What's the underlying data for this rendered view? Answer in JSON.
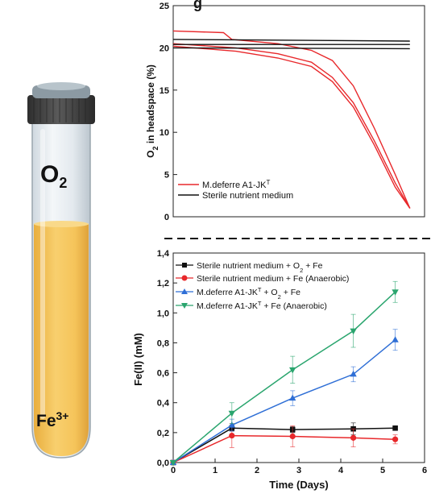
{
  "illustration": {
    "headspace_label": "O",
    "headspace_sub": "2",
    "liquid_label": "Fe",
    "liquid_sup": "3+",
    "colors": {
      "liquid": "#f5c45a",
      "cap": "#4a4a4a",
      "glass": "#e8eef3"
    }
  },
  "panel_label": "g",
  "chart_data": [
    {
      "type": "line",
      "ylabel_main": "O",
      "ylabel_sub": "2",
      "ylabel_rest": " in headspace (%)",
      "ylim": [
        0,
        25
      ],
      "yticks": [
        0,
        5,
        10,
        15,
        20,
        25
      ],
      "xlim": [
        0,
        6
      ],
      "legend_position": "bottom-left",
      "series": [
        {
          "name": "M.deferre A1-JK",
          "name_sup": "T",
          "color": "#e8282b",
          "values": [
            [
              0,
              22.0
            ],
            [
              1.2,
              21.8
            ],
            [
              1.4,
              21.0
            ],
            [
              2.5,
              20.5
            ],
            [
              3.3,
              19.7
            ],
            [
              3.8,
              18.5
            ],
            [
              4.3,
              15.5
            ],
            [
              4.8,
              10.5
            ],
            [
              5.3,
              5.0
            ],
            [
              5.65,
              1.0
            ]
          ]
        },
        {
          "name": "",
          "color": "#e8282b",
          "values": [
            [
              0,
              20.5
            ],
            [
              1.5,
              20.0
            ],
            [
              2.5,
              19.3
            ],
            [
              3.3,
              18.3
            ],
            [
              3.8,
              16.5
            ],
            [
              4.3,
              13.5
            ],
            [
              4.8,
              9.0
            ],
            [
              5.3,
              4.0
            ],
            [
              5.65,
              1.0
            ]
          ]
        },
        {
          "name": "",
          "color": "#e8282b",
          "values": [
            [
              0,
              20.2
            ],
            [
              1.5,
              19.6
            ],
            [
              2.5,
              18.8
            ],
            [
              3.3,
              17.8
            ],
            [
              3.8,
              16.0
            ],
            [
              4.3,
              13.0
            ],
            [
              4.8,
              8.5
            ],
            [
              5.3,
              3.5
            ],
            [
              5.65,
              1.0
            ]
          ]
        },
        {
          "name": "Sterile nutrient medium",
          "color": "#111111",
          "values": [
            [
              0,
              21.0
            ],
            [
              5.65,
              20.8
            ]
          ]
        },
        {
          "name": "",
          "color": "#111111",
          "values": [
            [
              0,
              20.4
            ],
            [
              5.65,
              20.4
            ]
          ]
        },
        {
          "name": "",
          "color": "#111111",
          "values": [
            [
              0,
              20.0
            ],
            [
              5.65,
              19.9
            ]
          ]
        }
      ]
    },
    {
      "type": "line",
      "xlabel": "Time (Days)",
      "ylabel": "Fe(II) (mM)",
      "xlim": [
        0,
        6
      ],
      "ylim": [
        0,
        1.4
      ],
      "xticks": [
        0,
        1,
        2,
        3,
        4,
        5,
        6
      ],
      "yticks": [
        "0,0",
        "0,2",
        "0,4",
        "0,6",
        "0,8",
        "1,0",
        "1,2",
        "1,4"
      ],
      "legend_position": "top-left",
      "series": [
        {
          "name": "Sterile nutrient medium + O",
          "name_sub": "2",
          "name_rest": " + Fe",
          "color": "#111111",
          "marker": "square",
          "x": [
            0,
            1.4,
            2.85,
            4.3,
            5.3
          ],
          "values": [
            0.0,
            0.23,
            0.22,
            0.225,
            0.23
          ],
          "err": [
            0,
            0.02,
            0.02,
            0.04,
            0.01
          ]
        },
        {
          "name": "Sterile nutrient medium + Fe (Anaerobic)",
          "color": "#e8282b",
          "marker": "circle",
          "x": [
            0,
            1.4,
            2.85,
            4.3,
            5.3
          ],
          "values": [
            0.0,
            0.18,
            0.175,
            0.165,
            0.155
          ],
          "err": [
            0,
            0.08,
            0.07,
            0.06,
            0.03
          ]
        },
        {
          "name": "M.deferre A1-JK",
          "name_sup": "T",
          "name_rest": " + O",
          "name_sub": "2",
          "name_rest2": " + Fe",
          "color": "#2f6fd6",
          "marker": "triangle-up",
          "x": [
            0,
            1.4,
            2.85,
            4.3,
            5.3
          ],
          "values": [
            0.0,
            0.25,
            0.43,
            0.59,
            0.82
          ],
          "err": [
            0,
            0.04,
            0.05,
            0.05,
            0.07
          ]
        },
        {
          "name": "M.deferre A1-JK",
          "name_sup": "T",
          "name_rest": " + Fe (Anaerobic)",
          "color": "#2aa56e",
          "marker": "triangle-down",
          "x": [
            0,
            1.4,
            2.85,
            4.3,
            5.3
          ],
          "values": [
            0.0,
            0.33,
            0.62,
            0.88,
            1.14
          ],
          "err": [
            0,
            0.07,
            0.09,
            0.11,
            0.07
          ]
        }
      ]
    }
  ]
}
